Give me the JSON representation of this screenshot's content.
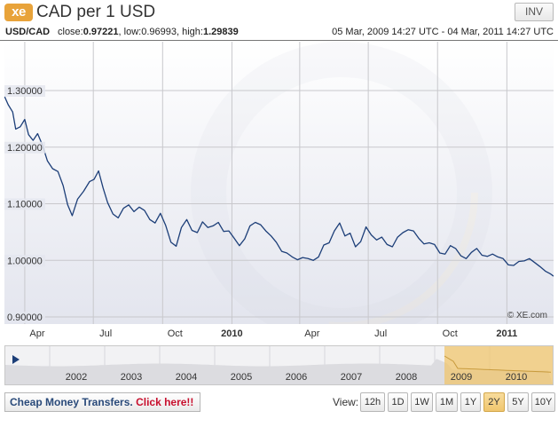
{
  "header": {
    "logo_text": "xe",
    "title": "CAD per 1 USD",
    "inv_label": "INV"
  },
  "stats": {
    "pair": "USD/CAD",
    "close_label": "close:",
    "close_value": "0.97221",
    "low_label": "low:",
    "low_value": "0.96993",
    "high_label": "high:",
    "high_value": "1.29839",
    "date_range": "05 Mar, 2009 14:27 UTC - 04 Mar, 2011 14:27 UTC"
  },
  "chart_data": {
    "type": "line",
    "title": "",
    "xlabel": "",
    "ylabel": "",
    "x_tick_labels": [
      "Apr",
      "Jul",
      "Oct",
      "2010",
      "Apr",
      "Jul",
      "Oct",
      "2011"
    ],
    "y_tick_labels": [
      "1.30000",
      "1.20000",
      "1.10000",
      "1.00000",
      "0.90000"
    ],
    "ylim": [
      0.9,
      1.3
    ],
    "x_range": [
      "2009-03-05",
      "2011-03-04"
    ],
    "grid": true,
    "watermark": "© XE.com",
    "series": [
      {
        "color": "#1c3e78",
        "points": [
          [
            "2009-03-05",
            1.29
          ],
          [
            "2009-03-10",
            1.275
          ],
          [
            "2009-03-16",
            1.262
          ],
          [
            "2009-03-20",
            1.232
          ],
          [
            "2009-03-26",
            1.236
          ],
          [
            "2009-04-01",
            1.249
          ],
          [
            "2009-04-06",
            1.222
          ],
          [
            "2009-04-12",
            1.212
          ],
          [
            "2009-04-18",
            1.224
          ],
          [
            "2009-04-24",
            1.205
          ],
          [
            "2009-05-01",
            1.176
          ],
          [
            "2009-05-08",
            1.162
          ],
          [
            "2009-05-15",
            1.157
          ],
          [
            "2009-05-22",
            1.132
          ],
          [
            "2009-05-28",
            1.098
          ],
          [
            "2009-06-03",
            1.079
          ],
          [
            "2009-06-10",
            1.108
          ],
          [
            "2009-06-18",
            1.122
          ],
          [
            "2009-06-26",
            1.139
          ],
          [
            "2009-07-02",
            1.143
          ],
          [
            "2009-07-08",
            1.158
          ],
          [
            "2009-07-14",
            1.128
          ],
          [
            "2009-07-20",
            1.102
          ],
          [
            "2009-07-27",
            1.082
          ],
          [
            "2009-08-03",
            1.075
          ],
          [
            "2009-08-10",
            1.092
          ],
          [
            "2009-08-17",
            1.098
          ],
          [
            "2009-08-24",
            1.086
          ],
          [
            "2009-08-31",
            1.094
          ],
          [
            "2009-09-07",
            1.088
          ],
          [
            "2009-09-14",
            1.072
          ],
          [
            "2009-09-21",
            1.066
          ],
          [
            "2009-09-28",
            1.083
          ],
          [
            "2009-10-05",
            1.062
          ],
          [
            "2009-10-12",
            1.032
          ],
          [
            "2009-10-19",
            1.025
          ],
          [
            "2009-10-26",
            1.058
          ],
          [
            "2009-11-02",
            1.072
          ],
          [
            "2009-11-09",
            1.053
          ],
          [
            "2009-11-16",
            1.049
          ],
          [
            "2009-11-23",
            1.068
          ],
          [
            "2009-11-30",
            1.058
          ],
          [
            "2009-12-07",
            1.061
          ],
          [
            "2009-12-14",
            1.067
          ],
          [
            "2009-12-21",
            1.051
          ],
          [
            "2009-12-28",
            1.052
          ],
          [
            "2010-01-04",
            1.039
          ],
          [
            "2010-01-11",
            1.026
          ],
          [
            "2010-01-18",
            1.038
          ],
          [
            "2010-01-25",
            1.061
          ],
          [
            "2010-02-01",
            1.067
          ],
          [
            "2010-02-08",
            1.063
          ],
          [
            "2010-02-15",
            1.052
          ],
          [
            "2010-02-22",
            1.043
          ],
          [
            "2010-03-01",
            1.032
          ],
          [
            "2010-03-08",
            1.016
          ],
          [
            "2010-03-15",
            1.013
          ],
          [
            "2010-03-22",
            1.006
          ],
          [
            "2010-03-29",
            1.001
          ],
          [
            "2010-04-05",
            1.005
          ],
          [
            "2010-04-12",
            1.003
          ],
          [
            "2010-04-19",
            1.0
          ],
          [
            "2010-04-26",
            1.006
          ],
          [
            "2010-05-03",
            1.027
          ],
          [
            "2010-05-10",
            1.031
          ],
          [
            "2010-05-17",
            1.052
          ],
          [
            "2010-05-24",
            1.066
          ],
          [
            "2010-05-31",
            1.043
          ],
          [
            "2010-06-07",
            1.048
          ],
          [
            "2010-06-14",
            1.024
          ],
          [
            "2010-06-21",
            1.033
          ],
          [
            "2010-06-28",
            1.059
          ],
          [
            "2010-07-05",
            1.045
          ],
          [
            "2010-07-12",
            1.036
          ],
          [
            "2010-07-19",
            1.041
          ],
          [
            "2010-07-26",
            1.028
          ],
          [
            "2010-08-02",
            1.024
          ],
          [
            "2010-08-09",
            1.041
          ],
          [
            "2010-08-16",
            1.049
          ],
          [
            "2010-08-23",
            1.054
          ],
          [
            "2010-08-30",
            1.052
          ],
          [
            "2010-09-06",
            1.039
          ],
          [
            "2010-09-13",
            1.029
          ],
          [
            "2010-09-20",
            1.031
          ],
          [
            "2010-09-27",
            1.028
          ],
          [
            "2010-10-04",
            1.013
          ],
          [
            "2010-10-11",
            1.011
          ],
          [
            "2010-10-18",
            1.026
          ],
          [
            "2010-10-25",
            1.021
          ],
          [
            "2010-11-01",
            1.008
          ],
          [
            "2010-11-08",
            1.003
          ],
          [
            "2010-11-15",
            1.014
          ],
          [
            "2010-11-22",
            1.021
          ],
          [
            "2010-11-29",
            1.009
          ],
          [
            "2010-12-06",
            1.007
          ],
          [
            "2010-12-13",
            1.011
          ],
          [
            "2010-12-20",
            1.006
          ],
          [
            "2010-12-27",
            1.003
          ],
          [
            "2011-01-03",
            0.992
          ],
          [
            "2011-01-10",
            0.991
          ],
          [
            "2011-01-17",
            0.998
          ],
          [
            "2011-01-24",
            0.999
          ],
          [
            "2011-01-31",
            1.003
          ],
          [
            "2011-02-07",
            0.996
          ],
          [
            "2011-02-14",
            0.989
          ],
          [
            "2011-02-21",
            0.981
          ],
          [
            "2011-02-28",
            0.976
          ],
          [
            "2011-03-04",
            0.972
          ]
        ]
      }
    ]
  },
  "navigator": {
    "year_labels": [
      "2002",
      "2003",
      "2004",
      "2005",
      "2006",
      "2007",
      "2008",
      "2009",
      "2010"
    ],
    "play_icon": "play-icon",
    "selected_range_color": "#f0c66e"
  },
  "footer": {
    "promo_text": "Cheap Money Transfers.",
    "promo_cta": "Click here!!",
    "view_label": "View:",
    "periods": [
      "12h",
      "1D",
      "1W",
      "1M",
      "1Y",
      "2Y",
      "5Y",
      "10Y"
    ],
    "active_period": "2Y"
  },
  "colors": {
    "line": "#1c3e78",
    "area_top": "#ffffff",
    "area_bottom": "#e3e5ee",
    "grid": "#c8c8cc",
    "accent": "#e8a33a",
    "cta": "#c8102e"
  }
}
